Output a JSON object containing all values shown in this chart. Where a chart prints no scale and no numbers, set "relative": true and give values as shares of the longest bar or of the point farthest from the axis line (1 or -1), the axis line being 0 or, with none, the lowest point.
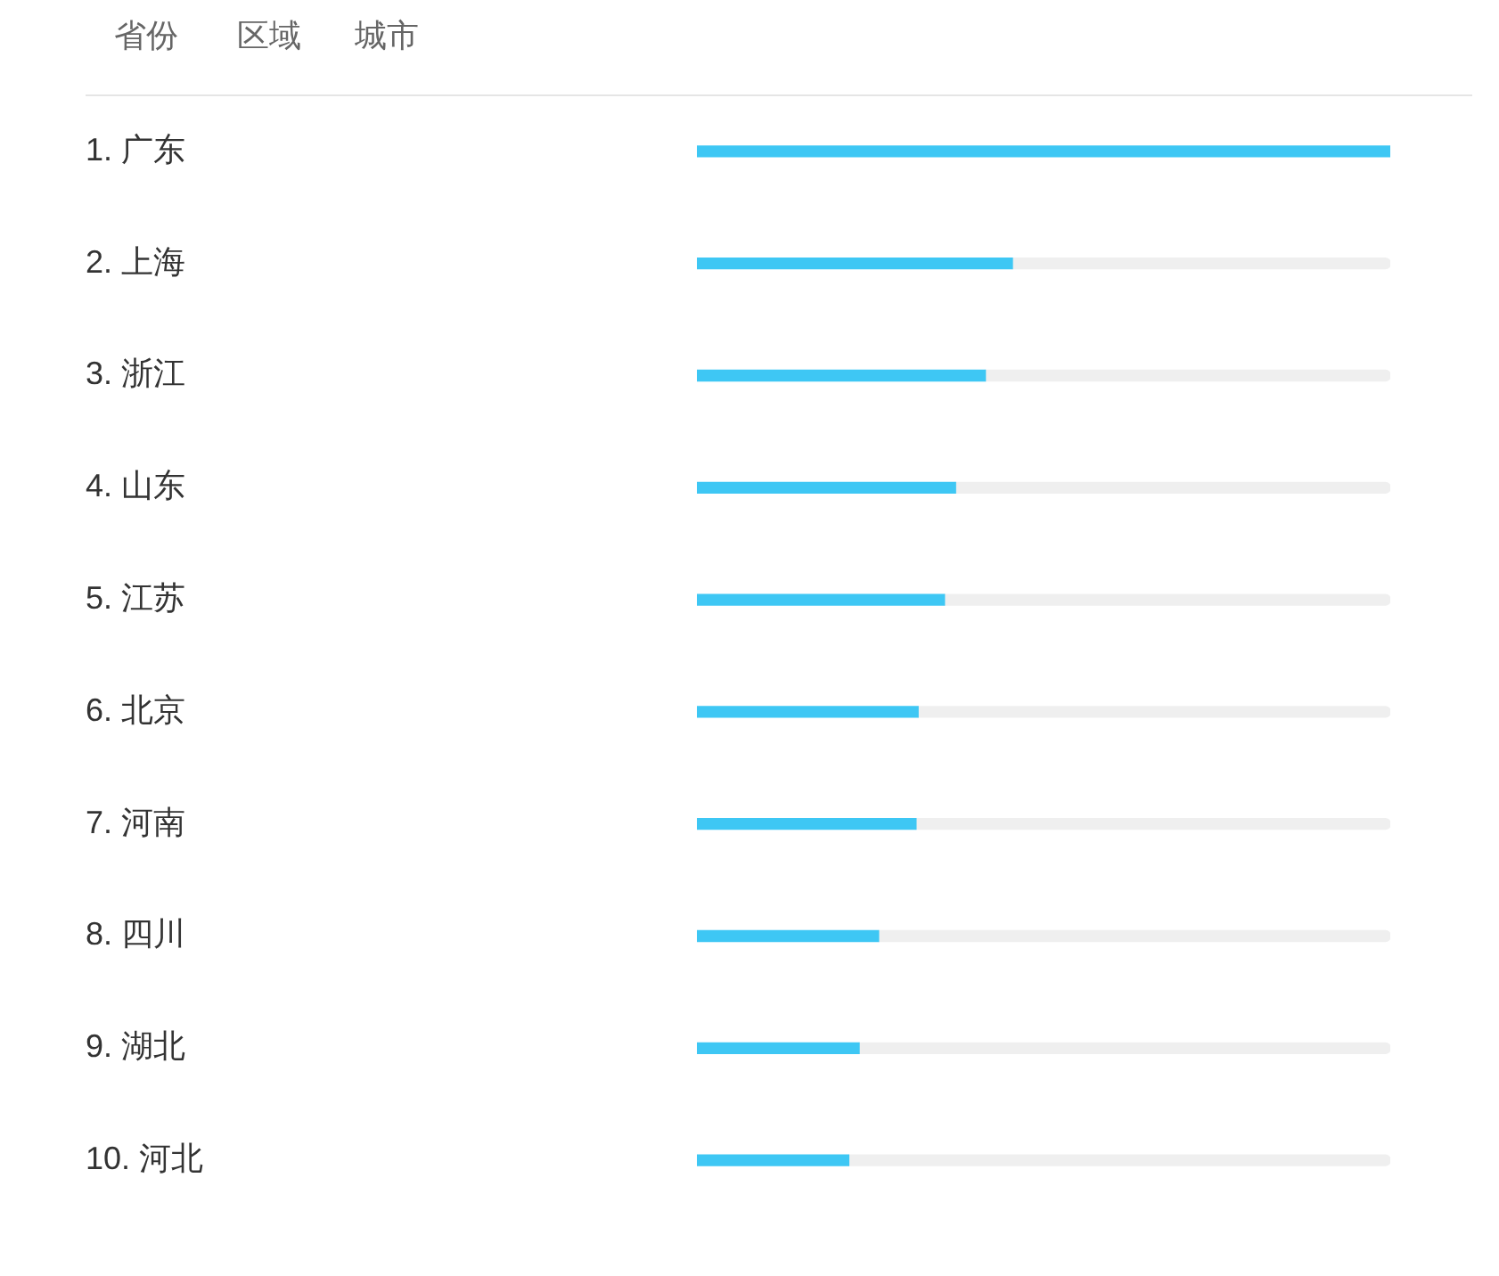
{
  "chart_data": {
    "type": "bar",
    "orientation": "horizontal",
    "relative": true,
    "stacked": true,
    "grid": false,
    "legend": false,
    "annotations": [
      "省份",
      "区域",
      "城市"
    ],
    "categories": [
      "1. 广东",
      "2. 上海",
      "3. 浙江",
      "4. 山东",
      "5. 江苏",
      "6. 北京",
      "7. 河南",
      "8. 四川",
      "9. 湖北",
      "10. 河北"
    ],
    "series": [
      {
        "color": "#3ec7f4",
        "values": [
          1,
          0.455,
          0.416,
          0.373,
          0.357,
          0.319,
          0.316,
          0.262,
          0.234,
          0.219
        ]
      },
      {
        "color": "#efefef",
        "values": [
          0,
          0.545,
          0.584,
          0.627,
          0.643,
          0.681,
          0.684,
          0.738,
          0.766,
          0.781
        ]
      }
    ]
  }
}
